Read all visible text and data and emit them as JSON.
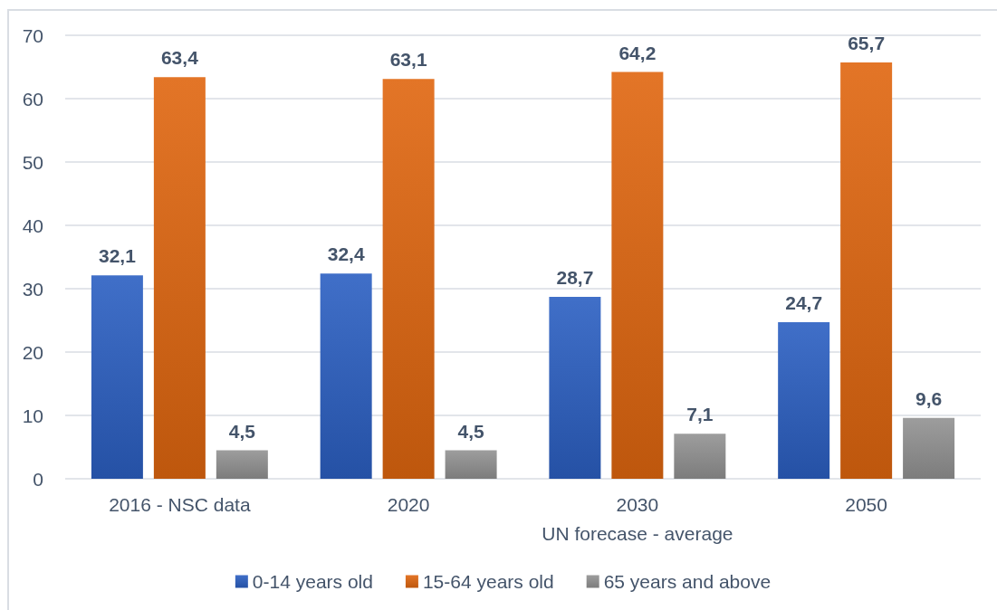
{
  "chart_data": {
    "type": "bar",
    "categories": [
      "2016 - NSC data",
      "2020",
      "2030",
      "2050"
    ],
    "series": [
      {
        "name": "0-14 years old",
        "color": "#2b5fc2",
        "values": [
          32.1,
          32.4,
          28.7,
          24.7
        ],
        "value_labels": [
          "32,1",
          "32,4",
          "28,7",
          "24,7"
        ]
      },
      {
        "name": "15-64 years old",
        "color": "#e0660f",
        "values": [
          63.4,
          63.1,
          64.2,
          65.7
        ],
        "value_labels": [
          "63,4",
          "63,1",
          "64,2",
          "65,7"
        ]
      },
      {
        "name": "65 years and above",
        "color": "#929292",
        "values": [
          4.5,
          4.5,
          7.1,
          9.6
        ],
        "value_labels": [
          "4,5",
          "4,5",
          "7,1",
          "9,6"
        ]
      }
    ],
    "ylim": [
      0,
      70
    ],
    "yticks": [
      0,
      10,
      20,
      30,
      40,
      50,
      60,
      70
    ],
    "annotations": [
      "UN forecase - average"
    ],
    "grid": "y",
    "legend": "bottom"
  }
}
